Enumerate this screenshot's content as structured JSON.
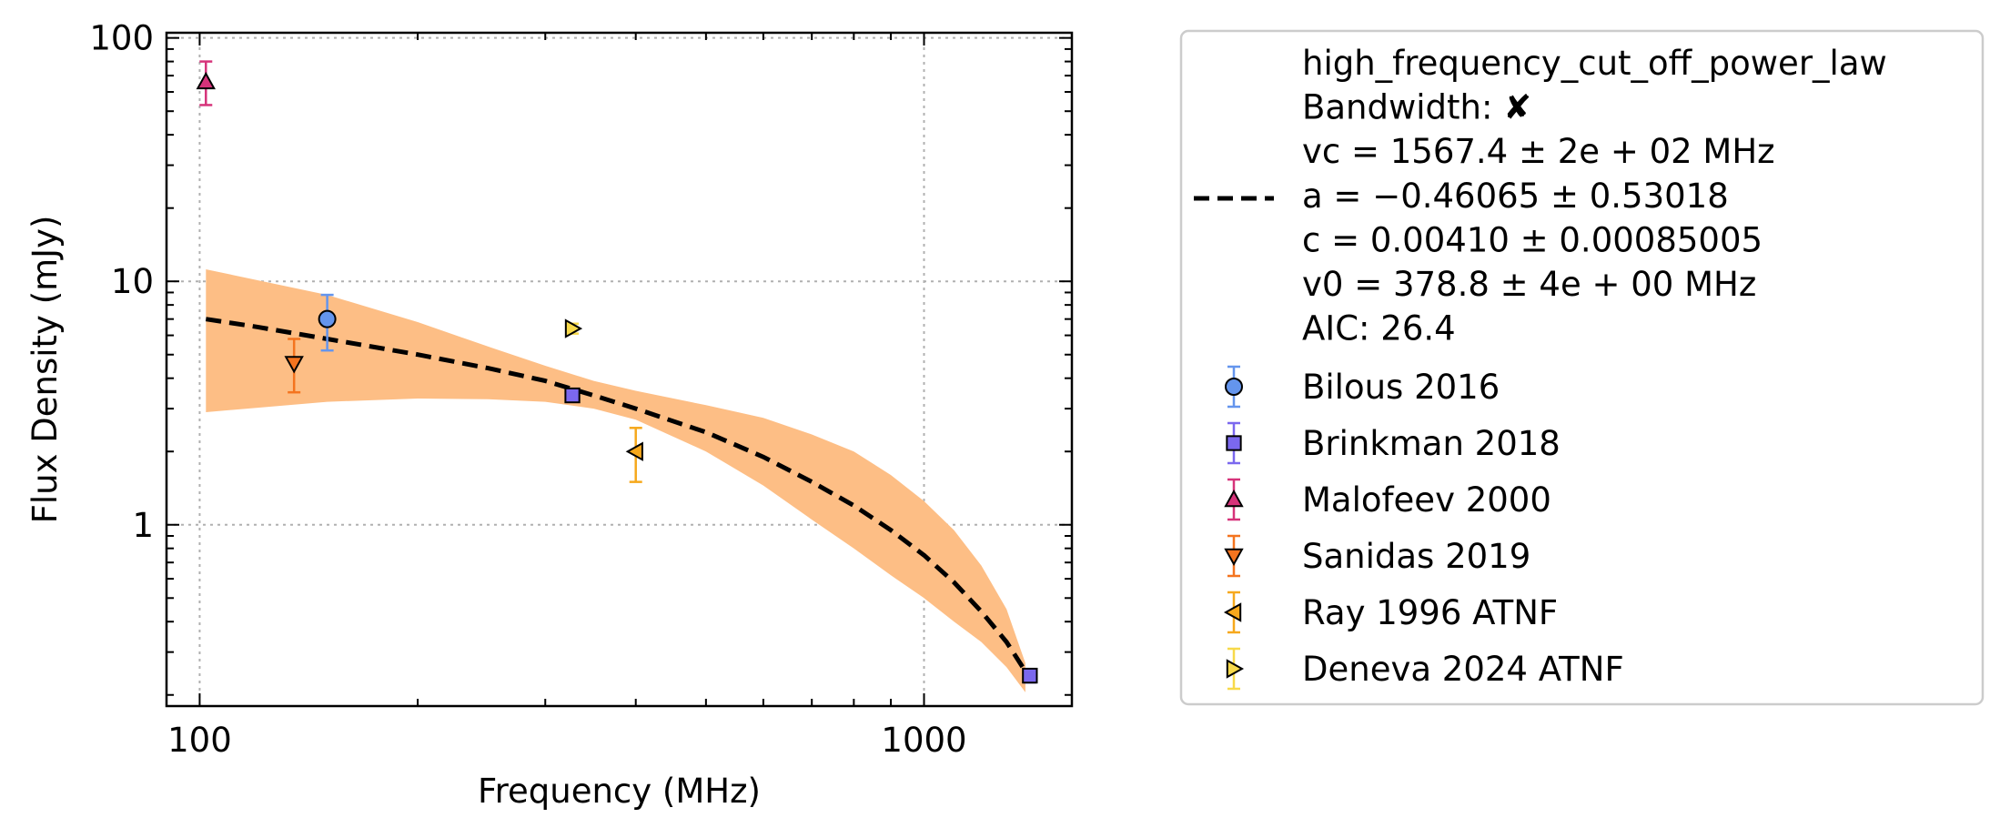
{
  "chart_data": {
    "type": "scatter",
    "title": "",
    "xlabel": "Frequency (MHz)",
    "ylabel": "Flux Density (mJy)",
    "xscale": "log",
    "yscale": "log",
    "xlim": [
      90,
      1600
    ],
    "ylim": [
      0.18,
      105
    ],
    "xticks": [
      {
        "value": 100,
        "label": "100"
      },
      {
        "value": 1000,
        "label": "1000"
      }
    ],
    "yticks": [
      {
        "value": 1,
        "label": "1"
      },
      {
        "value": 10,
        "label": "10"
      },
      {
        "value": 100,
        "label": "100"
      }
    ],
    "grid": true,
    "legend_position": "outside-right",
    "fit": {
      "model": "high_frequency_cut_off_power_law",
      "lines": [
        "high_frequency_cut_off_power_law",
        "Bandwidth: ✘",
        "vc = 1567.4 ± 2e + 02 MHz",
        "a = −0.46065 ± 0.53018",
        "c = 0.00410 ± 0.00085005",
        "v0 = 378.8 ± 4e + 00 MHz",
        "AIC: 26.4"
      ],
      "curve": [
        [
          102,
          7.0
        ],
        [
          120,
          6.5
        ],
        [
          150,
          5.8
        ],
        [
          200,
          5.0
        ],
        [
          250,
          4.4
        ],
        [
          300,
          3.9
        ],
        [
          350,
          3.4
        ],
        [
          400,
          3.0
        ],
        [
          500,
          2.4
        ],
        [
          600,
          1.9
        ],
        [
          700,
          1.5
        ],
        [
          800,
          1.2
        ],
        [
          900,
          0.95
        ],
        [
          1000,
          0.75
        ],
        [
          1100,
          0.58
        ],
        [
          1200,
          0.44
        ],
        [
          1300,
          0.33
        ],
        [
          1380,
          0.25
        ]
      ],
      "band_upper": [
        [
          102,
          11.2
        ],
        [
          150,
          8.8
        ],
        [
          200,
          6.8
        ],
        [
          250,
          5.4
        ],
        [
          300,
          4.5
        ],
        [
          350,
          3.9
        ],
        [
          400,
          3.55
        ],
        [
          500,
          3.1
        ],
        [
          600,
          2.75
        ],
        [
          700,
          2.35
        ],
        [
          800,
          2.0
        ],
        [
          900,
          1.6
        ],
        [
          1000,
          1.25
        ],
        [
          1100,
          0.95
        ],
        [
          1200,
          0.68
        ],
        [
          1300,
          0.45
        ],
        [
          1380,
          0.27
        ]
      ],
      "band_lower": [
        [
          102,
          2.9
        ],
        [
          150,
          3.2
        ],
        [
          200,
          3.3
        ],
        [
          250,
          3.28
        ],
        [
          300,
          3.2
        ],
        [
          350,
          3.0
        ],
        [
          400,
          2.7
        ],
        [
          500,
          2.0
        ],
        [
          600,
          1.45
        ],
        [
          700,
          1.05
        ],
        [
          800,
          0.8
        ],
        [
          900,
          0.62
        ],
        [
          1000,
          0.5
        ],
        [
          1100,
          0.4
        ],
        [
          1200,
          0.33
        ],
        [
          1300,
          0.26
        ],
        [
          1380,
          0.205
        ]
      ],
      "band_color": "#fdbe85",
      "line_color": "#000000"
    },
    "series": [
      {
        "name": "Bilous 2016",
        "marker": "circle",
        "color": "#6495ed",
        "points": [
          {
            "x": 150,
            "y": 7.0,
            "yerr_low": 5.2,
            "yerr_high": 8.8
          }
        ]
      },
      {
        "name": "Brinkman 2018",
        "marker": "square",
        "color": "#7b68ee",
        "points": [
          {
            "x": 327,
            "y": 3.4,
            "yerr_low": 3.25,
            "yerr_high": 3.55
          },
          {
            "x": 1400,
            "y": 0.24,
            "yerr_low": 0.225,
            "yerr_high": 0.255
          }
        ]
      },
      {
        "name": "Malofeev 2000",
        "marker": "triangle-up",
        "color": "#d6337a",
        "points": [
          {
            "x": 102,
            "y": 66,
            "yerr_low": 53,
            "yerr_high": 80
          }
        ]
      },
      {
        "name": "Sanidas 2019",
        "marker": "triangle-down",
        "color": "#f4741f",
        "points": [
          {
            "x": 135,
            "y": 4.6,
            "yerr_low": 3.5,
            "yerr_high": 5.8
          }
        ]
      },
      {
        "name": "Ray 1996 ATNF",
        "marker": "triangle-left",
        "color": "#f6a81c",
        "points": [
          {
            "x": 400,
            "y": 2.0,
            "yerr_low": 1.5,
            "yerr_high": 2.5
          }
        ]
      },
      {
        "name": "Deneva 2024 ATNF",
        "marker": "triangle-right",
        "color": "#f7d94a",
        "points": [
          {
            "x": 327,
            "y": 6.4,
            "yerr_low": 6.1,
            "yerr_high": 6.7
          }
        ]
      }
    ]
  }
}
